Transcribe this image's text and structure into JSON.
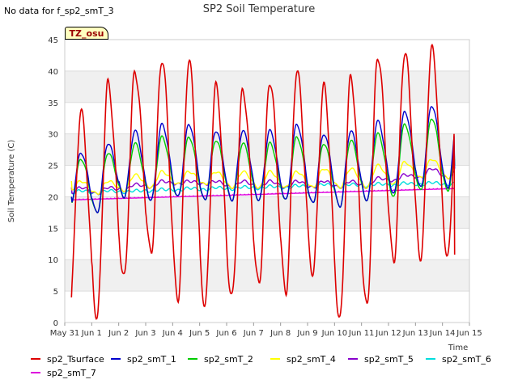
{
  "chart_data": {
    "type": "line",
    "title": "SP2 Soil Temperature",
    "xlabel": "Time",
    "ylabel": "Soil Temperature (C)",
    "ylim": [
      0,
      45
    ],
    "xlim": [
      0,
      15
    ],
    "yticks": [
      0,
      5,
      10,
      15,
      20,
      25,
      30,
      35,
      40,
      45
    ],
    "xtick_labels": [
      "May 31",
      "Jun 1",
      "Jun 2",
      "Jun 3",
      "Jun 4",
      "Jun 5",
      "Jun 6",
      "Jun 7",
      "Jun 8",
      "Jun 9",
      "Jun 10",
      "Jun 11",
      "Jun 12",
      "Jun 13",
      "Jun 14",
      "Jun 15"
    ],
    "data_range": [
      0.25,
      14.45
    ],
    "series": [
      {
        "name": "sp2_Tsurface",
        "color": "#dd0000",
        "daily_max": [
          33.5,
          38,
          40,
          42,
          41.5,
          37.5,
          37,
          38.5,
          40,
          37.5,
          39,
          42.5,
          43,
          43.5
        ],
        "daily_min": [
          4,
          0.8,
          7,
          11,
          4,
          3,
          4,
          6,
          5,
          8,
          0.5,
          2.5,
          10,
          10.5
        ],
        "start": 4,
        "end": 10.8
      },
      {
        "name": "sp2_smT_1",
        "color": "#0000cc",
        "daily_max": [
          27,
          28.5,
          30.5,
          31.5,
          31.5,
          30.5,
          30.5,
          30.5,
          31.5,
          30,
          30.5,
          32,
          33.5,
          34.5
        ],
        "daily_min": [
          18.5,
          17.5,
          20,
          19.5,
          20,
          19.5,
          19.5,
          19.5,
          19.5,
          19,
          18.5,
          19.5,
          20.5,
          21.5
        ],
        "start": 20,
        "end": 24.5
      },
      {
        "name": "sp2_smT_2",
        "color": "#00cc00",
        "daily_max": [
          26,
          27,
          28.5,
          29.5,
          29.5,
          29,
          28.5,
          28.5,
          29.5,
          28.5,
          29,
          30,
          31.5,
          32.5
        ],
        "daily_min": [
          18.5,
          17.5,
          20,
          19.5,
          20,
          19.5,
          19.5,
          19.5,
          19.5,
          19,
          18.5,
          19.5,
          20,
          21
        ],
        "start": 20,
        "end": 25
      },
      {
        "name": "sp2_smT_4",
        "color": "#ffff00",
        "daily_max": [
          22.5,
          22.5,
          23.5,
          24,
          24,
          24,
          24,
          24,
          24,
          24.5,
          24.5,
          25,
          25.5,
          26
        ],
        "daily_min": [
          21,
          20.5,
          21,
          21.5,
          22,
          22,
          21.5,
          21.5,
          21.5,
          21.5,
          21.5,
          21.5,
          22,
          23
        ],
        "start": 22.5,
        "end": 26
      },
      {
        "name": "sp2_smT_5",
        "color": "#8800cc",
        "daily_max": [
          21.5,
          21.5,
          22,
          22.5,
          22.5,
          22.5,
          22.5,
          22.5,
          22.5,
          22.5,
          22.5,
          23,
          23.5,
          24.5
        ],
        "daily_min": [
          20.5,
          20.5,
          21,
          21.5,
          22,
          22,
          21.5,
          21.5,
          21.5,
          21.5,
          21.5,
          21.5,
          22.5,
          23
        ],
        "start": 21.5,
        "end": 24.5
      },
      {
        "name": "sp2_smT_6",
        "color": "#00dddd",
        "daily_max": [
          21,
          21,
          21,
          21.2,
          21.4,
          21.5,
          21.6,
          21.7,
          21.8,
          22,
          22,
          22.1,
          22.2,
          22.3
        ],
        "daily_min": [
          20.5,
          20.5,
          20.7,
          20.9,
          21,
          21.1,
          21.2,
          21.3,
          21.4,
          21.5,
          21.6,
          21.7,
          21.8,
          21.9
        ],
        "start": 20.8,
        "end": 22.3
      },
      {
        "name": "sp2_smT_7",
        "color": "#dd00dd",
        "start": 19.5,
        "end": 21.3
      }
    ],
    "annotations": [
      "No data for f_sp2_smT_3"
    ],
    "legend_position": "bottom",
    "grid": "alternating horizontal bands"
  },
  "note": "No data for f_sp2_smT_3",
  "tz_label": "TZ_osu"
}
